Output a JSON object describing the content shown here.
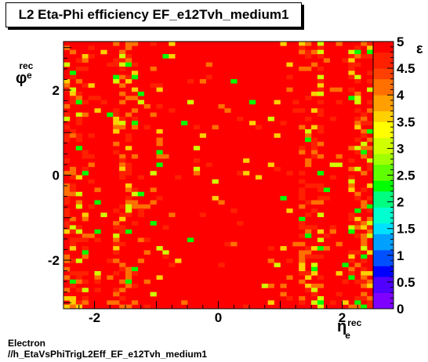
{
  "title": "L2 Eta-Phi efficiency EF_e12Tvh_medium1",
  "footer": {
    "line1": "Electron",
    "line2": "//h_EtaVsPhiTrigL2Eff_EF_e12Tvh_medium1"
  },
  "axes": {
    "x_symbol": "η",
    "x_sup": "rec",
    "x_sub": "e",
    "y_symbol": "φ",
    "y_sup": "rec",
    "y_sub": "e",
    "z_symbol": "ε",
    "x_ticks": [
      "-2",
      "0",
      "2"
    ],
    "y_ticks": [
      "-2",
      "0",
      "2"
    ],
    "z_ticks": [
      "0",
      "0.5",
      "1",
      "1.5",
      "2",
      "2.5",
      "3",
      "3.5",
      "4",
      "4.5",
      "5"
    ]
  },
  "chart_data": {
    "type": "heatmap",
    "title": "L2 Eta-Phi efficiency EF_e12Tvh_medium1",
    "xlim": [
      -2.5,
      2.5
    ],
    "ylim": [
      -3.14159,
      3.14159
    ],
    "zlim": [
      0,
      5
    ],
    "nx": 50,
    "ny": 64,
    "x_tick_values": [
      -2,
      0,
      2
    ],
    "y_tick_values": [
      -2,
      0,
      2
    ],
    "z_tick_values": [
      0,
      0.5,
      1,
      1.5,
      2,
      2.5,
      3,
      3.5,
      4,
      4.5,
      5
    ],
    "palette": [
      "#7f00ff",
      "#5000ff",
      "#0000ff",
      "#0050ff",
      "#00a0ff",
      "#00e0ff",
      "#00ffd0",
      "#00ff80",
      "#00ff00",
      "#60ff00",
      "#a0ff00",
      "#d0ff00",
      "#ffff00",
      "#ffd000",
      "#ffa000",
      "#ff7000",
      "#ff4000",
      "#ff2000",
      "#ff0000"
    ],
    "note_values": "cell efficiencies mostly at maximum (red, ~5) with scattered lower values (orange/yellow/green), denser near |eta|~1.5 and at the eta edges"
  }
}
